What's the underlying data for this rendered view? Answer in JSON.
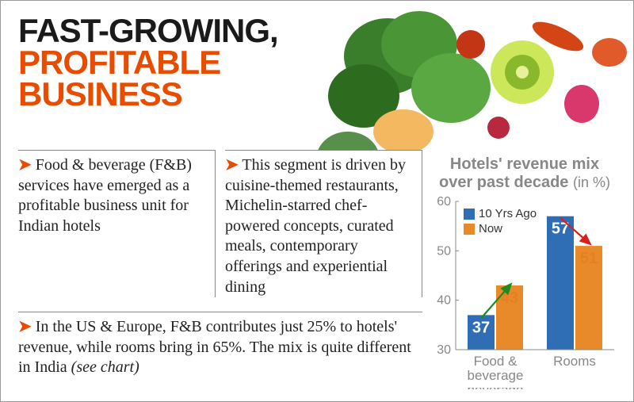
{
  "headline": {
    "line1": "FAST-GROWING,",
    "line2": "PROFITABLE",
    "line3": "BUSINESS"
  },
  "bullets": {
    "col1": "Food & beverage (F&B) services have emerged as a profitable business unit for Indian hotels",
    "col2": "This segment is driven by cuisine-themed restaurants, Michelin-starred chef-powered concepts, curated meals, contemporary offerings and experiential dining",
    "bottom_main": "In the US & Europe, F&B contributes just 25% to hotels' revenue, while rooms bring in 65%. The mix is quite different in India ",
    "bottom_italic": "(see chart)"
  },
  "chart": {
    "title_line1": "Hotels' revenue mix",
    "title_line2": "over past decade",
    "title_sub": "(in %)",
    "type": "bar",
    "legend": [
      {
        "label": "10 Yrs Ago",
        "color": "#2f6db5"
      },
      {
        "label": "Now",
        "color": "#e88a2a"
      }
    ],
    "categories": [
      "Food & beverage",
      "Rooms"
    ],
    "series_10yrs": [
      37,
      57
    ],
    "series_now": [
      43,
      51
    ],
    "ylim": [
      30,
      60
    ],
    "ytick_step": 10,
    "bar_color_a": "#2f6db5",
    "bar_color_b": "#e88a2a",
    "trend_arrows": [
      {
        "color": "#1f8a1f",
        "direction": "up"
      },
      {
        "color": "#d62020",
        "direction": "down"
      }
    ],
    "axis_color": "#888888",
    "background_color": "#ffffff"
  },
  "styling": {
    "accent_color": "#e74c00",
    "headline_color": "#1a1a1a"
  }
}
